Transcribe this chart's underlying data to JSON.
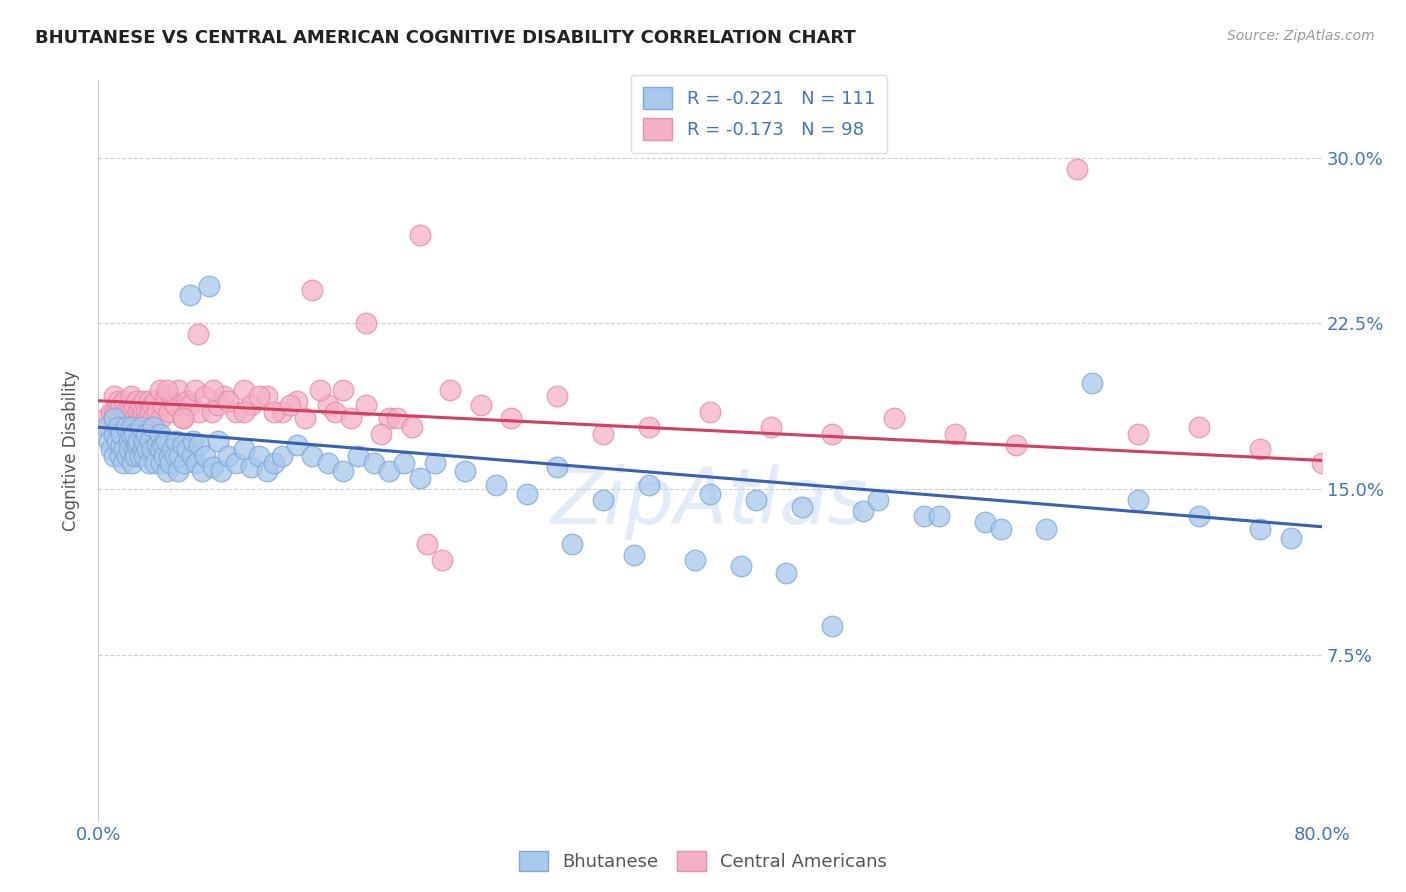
{
  "title": "BHUTANESE VS CENTRAL AMERICAN COGNITIVE DISABILITY CORRELATION CHART",
  "source": "Source: ZipAtlas.com",
  "ylabel_label": "Cognitive Disability",
  "legend_blue_r": "R = -0.221",
  "legend_blue_n": "N = 111",
  "legend_pink_r": "R = -0.173",
  "legend_pink_n": "N = 98",
  "blue_color": "#a8c8ec",
  "pink_color": "#f5b0c5",
  "line_blue": "#3a60b0",
  "line_pink": "#d04060",
  "watermark_color": "#c0d4f0",
  "background_color": "#ffffff",
  "grid_color": "#c8c8c8",
  "title_color": "#222222",
  "axis_tick_color": "#4472c4",
  "legend_text_color": "#4472c4",
  "ylabel_color": "#555555",
  "xlim": [
    0.0,
    0.8
  ],
  "ylim": [
    0.0,
    0.335
  ],
  "yticks": [
    0.075,
    0.15,
    0.225,
    0.3
  ],
  "ytick_labels": [
    "7.5%",
    "15.0%",
    "22.5%",
    "30.0%"
  ],
  "blue_line_y0": 0.178,
  "blue_line_y1": 0.133,
  "pink_line_y0": 0.19,
  "pink_line_y1": 0.163,
  "blue_scatter_x": [
    0.005,
    0.007,
    0.008,
    0.01,
    0.01,
    0.01,
    0.012,
    0.013,
    0.014,
    0.015,
    0.015,
    0.016,
    0.017,
    0.018,
    0.019,
    0.02,
    0.02,
    0.021,
    0.022,
    0.022,
    0.023,
    0.023,
    0.024,
    0.025,
    0.026,
    0.027,
    0.028,
    0.029,
    0.03,
    0.03,
    0.031,
    0.032,
    0.033,
    0.034,
    0.035,
    0.036,
    0.037,
    0.038,
    0.04,
    0.04,
    0.041,
    0.042,
    0.043,
    0.044,
    0.045,
    0.046,
    0.047,
    0.048,
    0.05,
    0.051,
    0.052,
    0.053,
    0.055,
    0.056,
    0.058,
    0.06,
    0.061,
    0.062,
    0.064,
    0.066,
    0.068,
    0.07,
    0.072,
    0.075,
    0.078,
    0.08,
    0.085,
    0.09,
    0.095,
    0.1,
    0.105,
    0.11,
    0.115,
    0.12,
    0.13,
    0.14,
    0.15,
    0.16,
    0.17,
    0.18,
    0.19,
    0.2,
    0.21,
    0.22,
    0.24,
    0.26,
    0.28,
    0.3,
    0.33,
    0.36,
    0.4,
    0.43,
    0.46,
    0.5,
    0.54,
    0.58,
    0.62,
    0.65,
    0.68,
    0.72,
    0.76,
    0.78,
    0.31,
    0.35,
    0.39,
    0.42,
    0.45,
    0.48,
    0.51,
    0.55,
    0.59
  ],
  "blue_scatter_y": [
    0.178,
    0.172,
    0.168,
    0.182,
    0.175,
    0.165,
    0.172,
    0.178,
    0.165,
    0.17,
    0.175,
    0.162,
    0.168,
    0.178,
    0.165,
    0.172,
    0.168,
    0.175,
    0.162,
    0.178,
    0.168,
    0.175,
    0.165,
    0.17,
    0.172,
    0.165,
    0.178,
    0.168,
    0.172,
    0.165,
    0.175,
    0.168,
    0.162,
    0.172,
    0.168,
    0.178,
    0.162,
    0.17,
    0.168,
    0.175,
    0.162,
    0.17,
    0.165,
    0.172,
    0.158,
    0.165,
    0.162,
    0.168,
    0.165,
    0.172,
    0.158,
    0.165,
    0.17,
    0.162,
    0.168,
    0.238,
    0.165,
    0.172,
    0.162,
    0.17,
    0.158,
    0.165,
    0.242,
    0.16,
    0.172,
    0.158,
    0.165,
    0.162,
    0.168,
    0.16,
    0.165,
    0.158,
    0.162,
    0.165,
    0.17,
    0.165,
    0.162,
    0.158,
    0.165,
    0.162,
    0.158,
    0.162,
    0.155,
    0.162,
    0.158,
    0.152,
    0.148,
    0.16,
    0.145,
    0.152,
    0.148,
    0.145,
    0.142,
    0.14,
    0.138,
    0.135,
    0.132,
    0.198,
    0.145,
    0.138,
    0.132,
    0.128,
    0.125,
    0.12,
    0.118,
    0.115,
    0.112,
    0.088,
    0.145,
    0.138,
    0.132
  ],
  "pink_scatter_x": [
    0.005,
    0.007,
    0.008,
    0.01,
    0.01,
    0.011,
    0.012,
    0.013,
    0.014,
    0.015,
    0.016,
    0.017,
    0.018,
    0.019,
    0.02,
    0.021,
    0.022,
    0.023,
    0.024,
    0.025,
    0.026,
    0.027,
    0.028,
    0.029,
    0.03,
    0.031,
    0.032,
    0.033,
    0.034,
    0.035,
    0.036,
    0.037,
    0.038,
    0.04,
    0.041,
    0.042,
    0.044,
    0.046,
    0.048,
    0.05,
    0.052,
    0.055,
    0.058,
    0.06,
    0.063,
    0.066,
    0.07,
    0.074,
    0.078,
    0.082,
    0.09,
    0.095,
    0.1,
    0.11,
    0.12,
    0.13,
    0.14,
    0.15,
    0.16,
    0.175,
    0.19,
    0.21,
    0.23,
    0.25,
    0.27,
    0.3,
    0.33,
    0.36,
    0.4,
    0.44,
    0.48,
    0.52,
    0.56,
    0.6,
    0.64,
    0.68,
    0.72,
    0.76,
    0.8,
    0.045,
    0.055,
    0.065,
    0.075,
    0.085,
    0.095,
    0.105,
    0.115,
    0.125,
    0.135,
    0.145,
    0.155,
    0.165,
    0.175,
    0.185,
    0.195,
    0.205,
    0.215,
    0.225
  ],
  "pink_scatter_y": [
    0.182,
    0.178,
    0.185,
    0.192,
    0.185,
    0.178,
    0.185,
    0.19,
    0.182,
    0.188,
    0.182,
    0.19,
    0.185,
    0.178,
    0.185,
    0.192,
    0.185,
    0.188,
    0.182,
    0.19,
    0.185,
    0.182,
    0.188,
    0.185,
    0.19,
    0.185,
    0.182,
    0.19,
    0.185,
    0.188,
    0.182,
    0.19,
    0.185,
    0.195,
    0.182,
    0.188,
    0.192,
    0.185,
    0.19,
    0.188,
    0.195,
    0.182,
    0.19,
    0.188,
    0.195,
    0.185,
    0.192,
    0.185,
    0.188,
    0.192,
    0.185,
    0.195,
    0.188,
    0.192,
    0.185,
    0.19,
    0.24,
    0.188,
    0.195,
    0.225,
    0.182,
    0.265,
    0.195,
    0.188,
    0.182,
    0.192,
    0.175,
    0.178,
    0.185,
    0.178,
    0.175,
    0.182,
    0.175,
    0.17,
    0.295,
    0.175,
    0.178,
    0.168,
    0.162,
    0.195,
    0.182,
    0.22,
    0.195,
    0.19,
    0.185,
    0.192,
    0.185,
    0.188,
    0.182,
    0.195,
    0.185,
    0.182,
    0.188,
    0.175,
    0.182,
    0.178,
    0.125,
    0.118
  ]
}
